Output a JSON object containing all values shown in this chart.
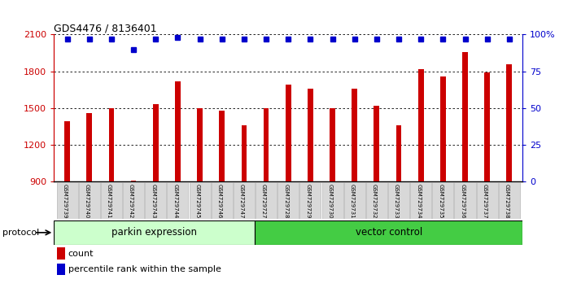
{
  "title": "GDS4476 / 8136401",
  "samples": [
    "GSM729739",
    "GSM729740",
    "GSM729741",
    "GSM729742",
    "GSM729743",
    "GSM729744",
    "GSM729745",
    "GSM729746",
    "GSM729747",
    "GSM729727",
    "GSM729728",
    "GSM729729",
    "GSM729730",
    "GSM729731",
    "GSM729732",
    "GSM729733",
    "GSM729734",
    "GSM729735",
    "GSM729736",
    "GSM729737",
    "GSM729738"
  ],
  "counts": [
    1390,
    1460,
    1500,
    910,
    1530,
    1720,
    1500,
    1480,
    1360,
    1500,
    1690,
    1660,
    1500,
    1660,
    1520,
    1360,
    1820,
    1760,
    1960,
    1790,
    1860
  ],
  "percentile_ranks": [
    97,
    97,
    97,
    90,
    97,
    98,
    97,
    97,
    97,
    97,
    97,
    97,
    97,
    97,
    97,
    97,
    97,
    97,
    97,
    97,
    97
  ],
  "parkin_count": 9,
  "vector_count": 12,
  "ylim_left": [
    900,
    2100
  ],
  "ylim_right": [
    0,
    100
  ],
  "yticks_left": [
    900,
    1200,
    1500,
    1800,
    2100
  ],
  "yticks_right": [
    0,
    25,
    50,
    75,
    100
  ],
  "bar_color": "#cc0000",
  "dot_color": "#0000cc",
  "label_bg": "#d8d8d8",
  "legend_count_label": "count",
  "legend_pct_label": "percentile rank within the sample",
  "protocol_label": "protocol",
  "parkin_label": "parkin expression",
  "vector_label": "vector control",
  "parkin_bg": "#ccffcc",
  "vector_bg": "#44cc44"
}
